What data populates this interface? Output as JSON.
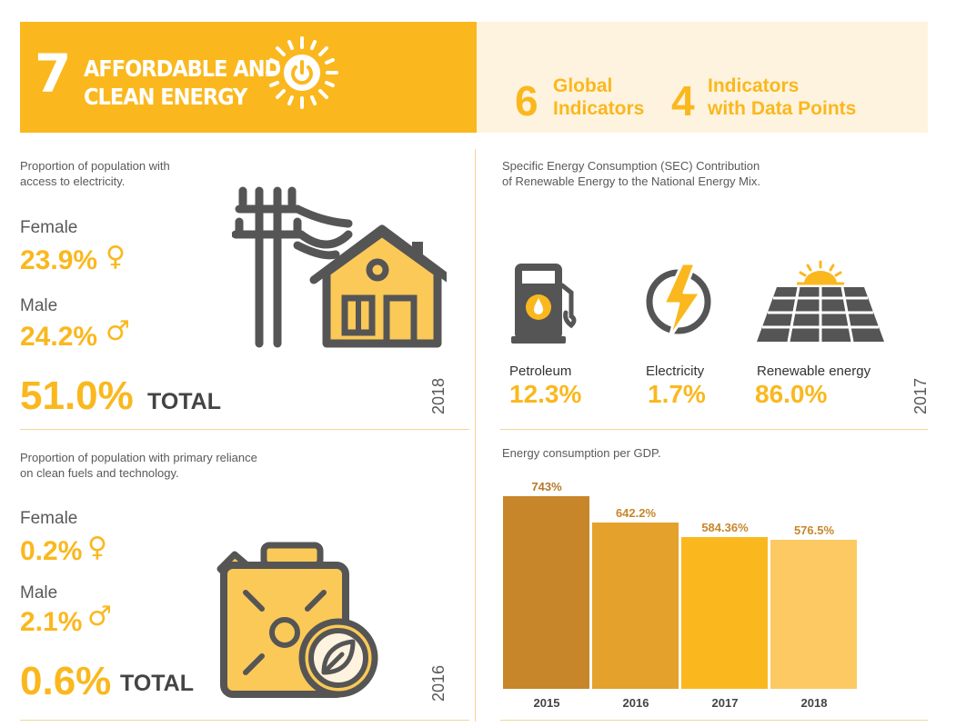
{
  "header": {
    "goal_number": "7",
    "title_line1": "AFFORDABLE AND",
    "title_line2": "CLEAN ENERGY",
    "global_indicators_count": "6",
    "global_indicators_line1": "Global",
    "global_indicators_line2": "Indicators",
    "data_indicators_count": "4",
    "data_indicators_line1": "Indicators",
    "data_indicators_line2": "with Data Points"
  },
  "electricity": {
    "caption_line1": "Proportion of population with",
    "caption_line2": "access to electricity.",
    "female_label": "Female",
    "female_value": "23.9%",
    "male_label": "Male",
    "male_value": "24.2%",
    "total_value": "51.0%",
    "total_label": "TOTAL",
    "year": "2018"
  },
  "clean_fuels": {
    "caption_line1": "Proportion of population with primary reliance",
    "caption_line2": "on clean fuels and technology.",
    "female_label": "Female",
    "female_value": "0.2%",
    "male_label": "Male",
    "male_value": "2.1%",
    "total_value": "0.6%",
    "total_label": "TOTAL",
    "year": "2016"
  },
  "energy_mix": {
    "caption_line1": "Specific Energy Consumption (SEC) Contribution",
    "caption_line2": "of Renewable Energy to the National Energy Mix.",
    "items": [
      {
        "label": "Petroleum",
        "value": "12.3%"
      },
      {
        "label": "Electricity",
        "value": "1.7%"
      },
      {
        "label": "Renewable energy",
        "value": "86.0%"
      }
    ],
    "year": "2017"
  },
  "symbols": {
    "female": "♀",
    "male": "♂"
  },
  "colors": {
    "accent": "#FAB81E",
    "panel": "#FEF3DF",
    "icon_gray": "#555555",
    "icon_fill": "#FBC957"
  },
  "chart_data": {
    "type": "bar",
    "title": "Energy consumption per GDP.",
    "categories": [
      "2015",
      "2016",
      "2017",
      "2018"
    ],
    "values": [
      743,
      642.2,
      584.36,
      576.5
    ],
    "value_labels": [
      "743%",
      "642.2%",
      "584.36%",
      "576.5%"
    ],
    "colors": [
      "#C8862A",
      "#E4A12B",
      "#FAB81E",
      "#FCC962"
    ],
    "label_colors": [
      "#B8782A",
      "#C8862A",
      "#C8862A",
      "#C8862A"
    ],
    "ylim": [
      0,
      743
    ]
  }
}
